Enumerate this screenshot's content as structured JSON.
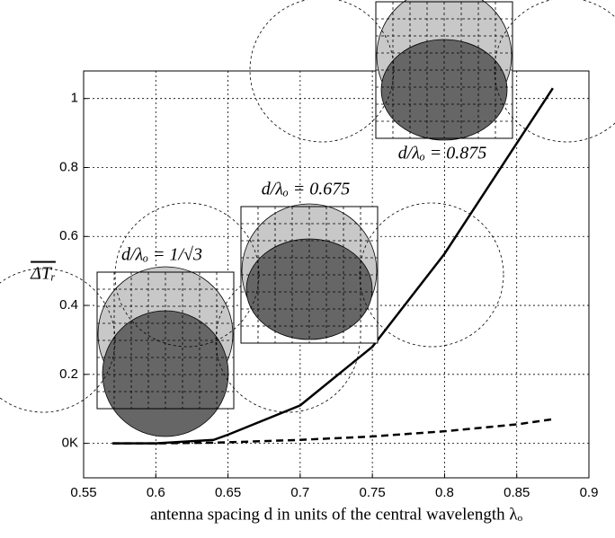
{
  "chart_data": {
    "type": "line",
    "x_label": "antenna spacing d in units of the central wavelength λₒ",
    "y_label": "ΔTᵣ",
    "x": [
      0.57,
      0.6,
      0.64,
      0.65,
      0.7,
      0.75,
      0.8,
      0.85,
      0.875
    ],
    "series": [
      {
        "color": "#000000",
        "linestyle": "solid",
        "values": [
          0,
          0,
          0.01,
          0.025,
          0.11,
          0.28,
          0.55,
          0.87,
          1.03
        ]
      },
      {
        "color": "#000000",
        "linestyle": "dashed",
        "values": [
          0,
          0,
          0.002,
          0.003,
          0.01,
          0.02,
          0.035,
          0.055,
          0.07
        ]
      }
    ],
    "annotations": [
      "d/λₒ = 1/√3",
      "d/λₒ = 0.675",
      "d/λₒ = 0.875"
    ],
    "xlim": [
      0.55,
      0.9
    ],
    "ylim": [
      -0.1,
      1.08
    ],
    "xticks": [
      0.55,
      0.6,
      0.65,
      0.7,
      0.75,
      0.8,
      0.85,
      0.9
    ],
    "yticks": [
      {
        "value": 0,
        "label": "0K"
      },
      0.2,
      0.4,
      0.6,
      0.8,
      1
    ],
    "grid": true
  }
}
